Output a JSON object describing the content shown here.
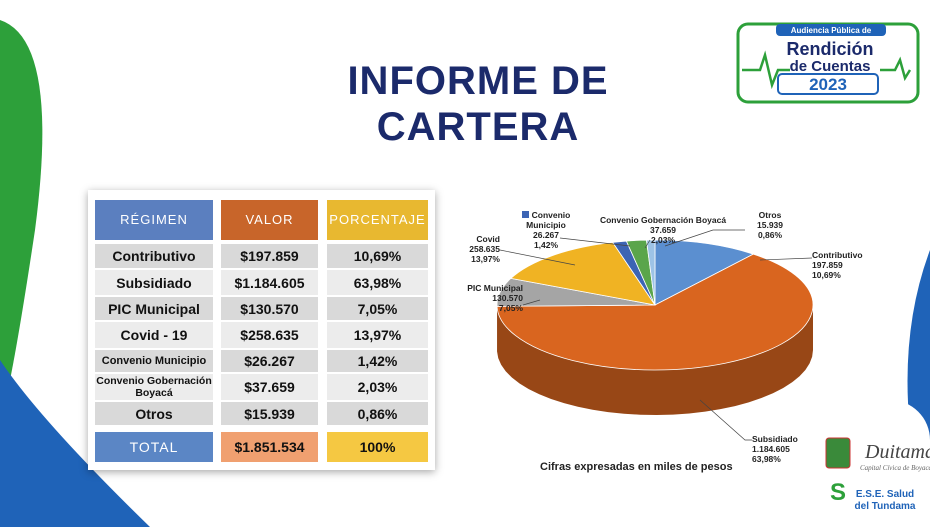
{
  "header": {
    "title": "INFORME DE CARTERA"
  },
  "logo_event": {
    "line1": "Audiencia Pública de",
    "line2": "Rendición",
    "line3": "de Cuentas",
    "year": "2023"
  },
  "logo_city": {
    "name": "Duitama",
    "motto": "Capital Cívica de Boyacá",
    "ese": "E.S.E. Salud",
    "ese2": "del Tundama"
  },
  "table": {
    "header": [
      "RÉGIMEN",
      "VALOR",
      "PORCENTAJE"
    ],
    "rows": [
      [
        "Contributivo",
        "$197.859",
        "10,69%"
      ],
      [
        "Subsidiado",
        "$1.184.605",
        "63,98%"
      ],
      [
        "PIC Municipal",
        "$130.570",
        "7,05%"
      ],
      [
        "Covid - 19",
        "$258.635",
        "13,97%"
      ],
      [
        "Convenio Municipio",
        "$26.267",
        "1,42%"
      ],
      [
        "Convenio Gobernación Boyacá",
        "$37.659",
        "2,03%"
      ],
      [
        "Otros",
        "$15.939",
        "0,86%"
      ]
    ],
    "total": [
      "TOTAL",
      "$1.851.534",
      "100%"
    ]
  },
  "chart_data": {
    "type": "pie",
    "categories": [
      "Contributivo",
      "Subsidiado",
      "PIC Municipal",
      "Covid",
      "Convenio Municipio",
      "Convenio Gobernación Boyacá",
      "Otros"
    ],
    "values": [
      197859,
      1184605,
      130570,
      258635,
      26267,
      37659,
      15939
    ],
    "value_labels": [
      "197.859",
      "1.184.605",
      "130.570",
      "258.635",
      "26.267",
      "37.659",
      "15.939"
    ],
    "percentages": [
      10.69,
      63.98,
      7.05,
      13.97,
      1.42,
      2.03,
      0.86
    ],
    "percentage_labels": [
      "10,69%",
      "63,98%",
      "7,05%",
      "13,97%",
      "1,42%",
      "2,03%",
      "0,86%"
    ],
    "colors": [
      "#5b8fd0",
      "#d9651f",
      "#a5a5a5",
      "#f0b323",
      "#3c64b4",
      "#5aa54b",
      "#9dc3e6"
    ],
    "note": "Cifras expresadas en miles de pesos"
  }
}
